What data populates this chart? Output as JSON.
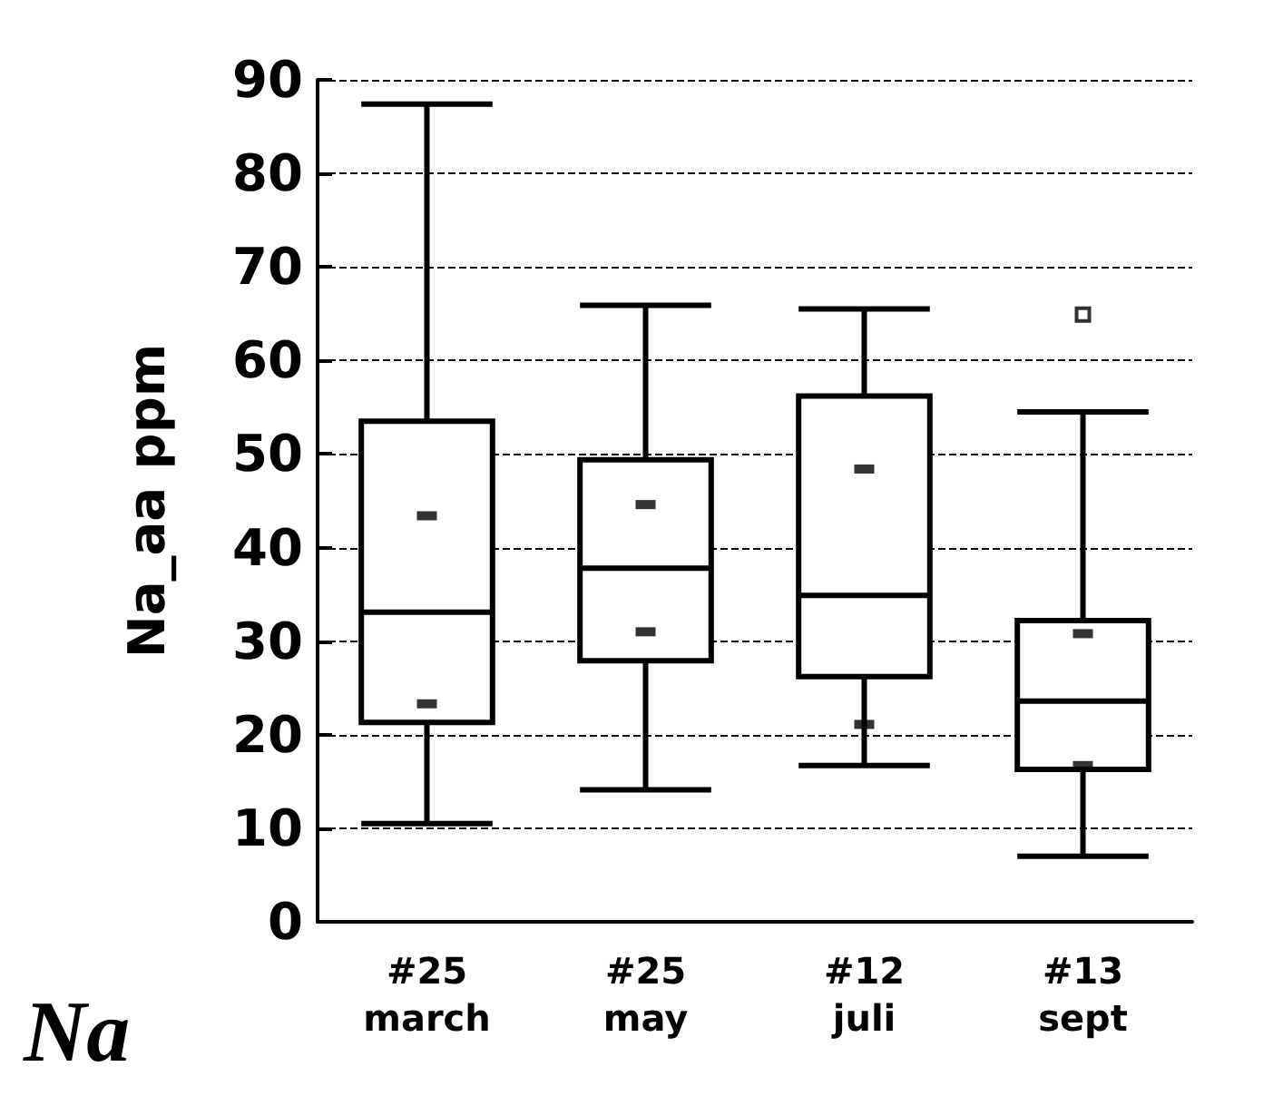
{
  "chart_data": {
    "type": "box",
    "title": "Na",
    "ylabel": "Na_aa ppm",
    "categories": [
      "#25\nmarch",
      "#25\nmay",
      "#12\njuli",
      "#13\nsept"
    ],
    "boxes": [
      {
        "low": 10.5,
        "q1": 21.3,
        "median": 33.1,
        "q3": 53.5,
        "high": 87.4
      },
      {
        "low": 14.1,
        "q1": 27.9,
        "median": 37.8,
        "q3": 49.4,
        "high": 65.9
      },
      {
        "low": 16.7,
        "q1": 26.2,
        "median": 34.9,
        "q3": 56.2,
        "high": 65.5
      },
      {
        "low": 7.0,
        "q1": 16.3,
        "median": 23.6,
        "q3": 32.2,
        "high": 54.5,
        "outliers": [
          64.9
        ]
      }
    ],
    "series": [
      {
        "type": "scatter",
        "marker": "square",
        "color": "#000000",
        "x": [
          "#25\nmarch",
          "#25\nmay",
          "#12\njuli",
          "#13\nsept"
        ],
        "values": [
          43.4,
          44.6,
          48.4,
          30.8
        ]
      },
      {
        "type": "scatter",
        "marker": "square",
        "color": "#000000",
        "x": [
          "#25\nmarch",
          "#25\nmay",
          "#12\njuli",
          "#13\nsept"
        ],
        "values": [
          23.3,
          31.0,
          21.1,
          16.7
        ]
      }
    ],
    "ylim": [
      0,
      90
    ],
    "yticks": [
      0,
      10,
      20,
      30,
      40,
      50,
      60,
      70,
      80,
      90
    ],
    "grid": "y",
    "line_style": "dashed"
  }
}
